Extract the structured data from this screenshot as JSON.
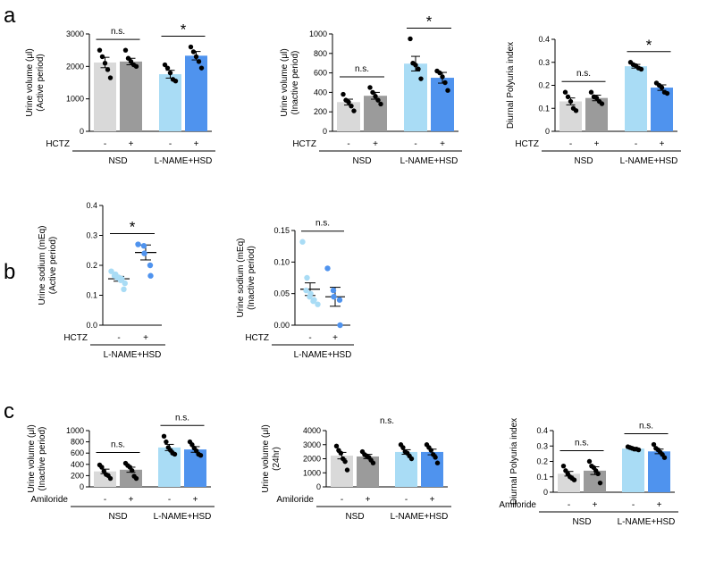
{
  "figure": {
    "panel_labels": [
      "a",
      "b",
      "c"
    ]
  },
  "colors": {
    "nsd_control": "#d9d9d9",
    "nsd_treated": "#9b9b9b",
    "lname_control": "#a9dcf5",
    "lname_treated": "#4f93ee",
    "dot": "#000000",
    "axis": "#000000"
  },
  "chart_data": [
    {
      "id": "a1",
      "panel": "a",
      "type": "bar",
      "ylabel_lines": [
        "Urine volume (μl)",
        "(Active period)"
      ],
      "yticks": [
        "0",
        "1000",
        "2000",
        "3000"
      ],
      "ylim": [
        0,
        3000
      ],
      "treatment_label": "HCTZ",
      "groups": [
        "NSD",
        "L-NAME+HSD"
      ],
      "categories": [
        "-",
        "+",
        "-",
        "+"
      ],
      "values": [
        2120,
        2150,
        1760,
        2330
      ],
      "sem": [
        160,
        100,
        120,
        130
      ],
      "points": [
        [
          2500,
          2300,
          2100,
          1900,
          1650
        ],
        [
          2500,
          2250,
          2150,
          2050,
          2000
        ],
        [
          2050,
          1950,
          1800,
          1600,
          1550
        ],
        [
          2600,
          2450,
          2300,
          2150,
          1950
        ]
      ],
      "comparisons": [
        {
          "label": "n.s."
        },
        {
          "label": "*"
        }
      ]
    },
    {
      "id": "a2",
      "panel": "a",
      "type": "bar",
      "ylabel_lines": [
        "Urine volume (μl)",
        "(Inactive period)"
      ],
      "yticks": [
        "0",
        "200",
        "400",
        "600",
        "800",
        "1000"
      ],
      "ylim": [
        0,
        1000
      ],
      "treatment_label": "HCTZ",
      "groups": [
        "NSD",
        "L-NAME+HSD"
      ],
      "categories": [
        "-",
        "+",
        "-",
        "+"
      ],
      "values": [
        300,
        365,
        695,
        550
      ],
      "sem": [
        30,
        35,
        75,
        55
      ],
      "points": [
        [
          380,
          320,
          300,
          260,
          210
        ],
        [
          450,
          400,
          360,
          320,
          280
        ],
        [
          950,
          700,
          680,
          640,
          540
        ],
        [
          620,
          600,
          560,
          500,
          420
        ]
      ],
      "comparisons": [
        {
          "label": "n.s."
        },
        {
          "label": "*"
        }
      ]
    },
    {
      "id": "a3",
      "panel": "a",
      "type": "bar",
      "ylabel_lines": [
        "Diurnal Polyuria index"
      ],
      "yticks": [
        "0",
        "0.1",
        "0.2",
        "0.3",
        "0.4"
      ],
      "ylim": [
        0,
        0.4
      ],
      "treatment_label": "HCTZ",
      "groups": [
        "NSD",
        "L-NAME+HSD"
      ],
      "categories": [
        "-",
        "+",
        "-",
        "+"
      ],
      "values": [
        0.13,
        0.145,
        0.283,
        0.19
      ],
      "sem": [
        0.015,
        0.012,
        0.008,
        0.012
      ],
      "points": [
        [
          0.17,
          0.15,
          0.13,
          0.1,
          0.09
        ],
        [
          0.17,
          0.15,
          0.145,
          0.13,
          0.12
        ],
        [
          0.3,
          0.29,
          0.285,
          0.275,
          0.27
        ],
        [
          0.21,
          0.2,
          0.19,
          0.17,
          0.165
        ]
      ],
      "comparisons": [
        {
          "label": "n.s."
        },
        {
          "label": "*"
        }
      ]
    },
    {
      "id": "b1",
      "panel": "b",
      "type": "scatter",
      "ylabel_lines": [
        "Urine sodium (mEq)",
        "(Active period)"
      ],
      "yticks": [
        "0.0",
        "0.1",
        "0.2",
        "0.3",
        "0.4"
      ],
      "ylim": [
        0,
        0.4
      ],
      "treatment_label": "HCTZ",
      "groups": [
        "L-NAME+HSD"
      ],
      "categories": [
        "-",
        "+"
      ],
      "values": [
        0.155,
        0.243
      ],
      "sem": [
        0.008,
        0.025
      ],
      "points": [
        [
          0.18,
          0.17,
          0.165,
          0.16,
          0.158,
          0.155,
          0.15,
          0.14,
          0.12
        ],
        [
          0.27,
          0.265,
          0.24,
          0.2,
          0.165
        ]
      ],
      "comparisons": [
        {
          "label": "*"
        }
      ]
    },
    {
      "id": "b2",
      "panel": "b",
      "type": "scatter",
      "ylabel_lines": [
        "Urine sodium (mEq)",
        "(Inactive period)"
      ],
      "yticks": [
        "0.00",
        "0.05",
        "0.10",
        "0.15"
      ],
      "ylim": [
        0,
        0.15
      ],
      "treatment_label": "HCTZ",
      "groups": [
        "L-NAME+HSD"
      ],
      "categories": [
        "-",
        "+"
      ],
      "values": [
        0.057,
        0.045
      ],
      "sem": [
        0.01,
        0.015
      ],
      "points": [
        [
          0.132,
          0.075,
          0.055,
          0.05,
          0.045,
          0.04,
          0.038,
          0.033
        ],
        [
          0.09,
          0.055,
          0.045,
          0.04,
          0.0
        ]
      ],
      "comparisons": [
        {
          "label": "n.s."
        }
      ]
    },
    {
      "id": "c1",
      "panel": "c",
      "type": "bar",
      "ylabel_lines": [
        "Urine volume (μl)",
        "(Inactive period)"
      ],
      "yticks": [
        "0",
        "200",
        "400",
        "600",
        "800",
        "1000"
      ],
      "ylim": [
        0,
        1000
      ],
      "treatment_label": "Amiloride",
      "groups": [
        "NSD",
        "L-NAME+HSD"
      ],
      "categories": [
        "-",
        "+",
        "-",
        "+"
      ],
      "values": [
        275,
        305,
        700,
        665
      ],
      "sem": [
        40,
        45,
        55,
        50
      ],
      "points": [
        [
          390,
          350,
          280,
          220,
          200,
          150
        ],
        [
          420,
          380,
          350,
          290,
          190,
          150
        ],
        [
          900,
          800,
          700,
          650,
          600,
          580
        ],
        [
          800,
          750,
          690,
          640,
          580,
          560
        ]
      ],
      "comparisons": [
        {
          "label": "n.s."
        },
        {
          "label": "n.s."
        }
      ]
    },
    {
      "id": "c2",
      "panel": "c",
      "type": "bar",
      "ylabel_lines": [
        "Urine volume (μl)",
        "(24hr)"
      ],
      "yticks": [
        "0",
        "1000",
        "2000",
        "3000",
        "4000"
      ],
      "ylim": [
        0,
        4000
      ],
      "treatment_label": "Amiloride",
      "groups": [
        "NSD",
        "L-NAME+HSD"
      ],
      "categories": [
        "-",
        "+",
        "-",
        "+"
      ],
      "values": [
        2220,
        2160,
        2480,
        2480
      ],
      "sem": [
        230,
        150,
        160,
        200
      ],
      "points": [
        [
          2900,
          2600,
          2400,
          2000,
          1800,
          1200
        ],
        [
          2500,
          2300,
          2200,
          2100,
          1900,
          1700
        ],
        [
          3000,
          2800,
          2500,
          2400,
          2200,
          2000
        ],
        [
          3000,
          2800,
          2600,
          2300,
          2100,
          1700
        ]
      ],
      "comparisons": [
        {
          "label": "n.s."
        }
      ]
    },
    {
      "id": "c3",
      "panel": "c",
      "type": "bar",
      "ylabel_lines": [
        "Diurnal Polyuria index"
      ],
      "yticks": [
        "0",
        "0.1",
        "0.2",
        "0.3",
        "0.4"
      ],
      "ylim": [
        0,
        0.4
      ],
      "treatment_label": "Amiloride",
      "groups": [
        "NSD",
        "L-NAME+HSD"
      ],
      "categories": [
        "-",
        "+",
        "-",
        "+"
      ],
      "values": [
        0.12,
        0.14,
        0.283,
        0.265
      ],
      "sem": [
        0.015,
        0.025,
        0.005,
        0.015
      ],
      "points": [
        [
          0.17,
          0.14,
          0.12,
          0.1,
          0.09,
          0.08
        ],
        [
          0.2,
          0.17,
          0.16,
          0.14,
          0.12,
          0.06
        ],
        [
          0.295,
          0.29,
          0.285,
          0.28,
          0.28,
          0.275
        ],
        [
          0.31,
          0.285,
          0.275,
          0.26,
          0.245,
          0.225
        ]
      ],
      "comparisons": [
        {
          "label": "n.s."
        },
        {
          "label": "n.s."
        }
      ]
    }
  ]
}
